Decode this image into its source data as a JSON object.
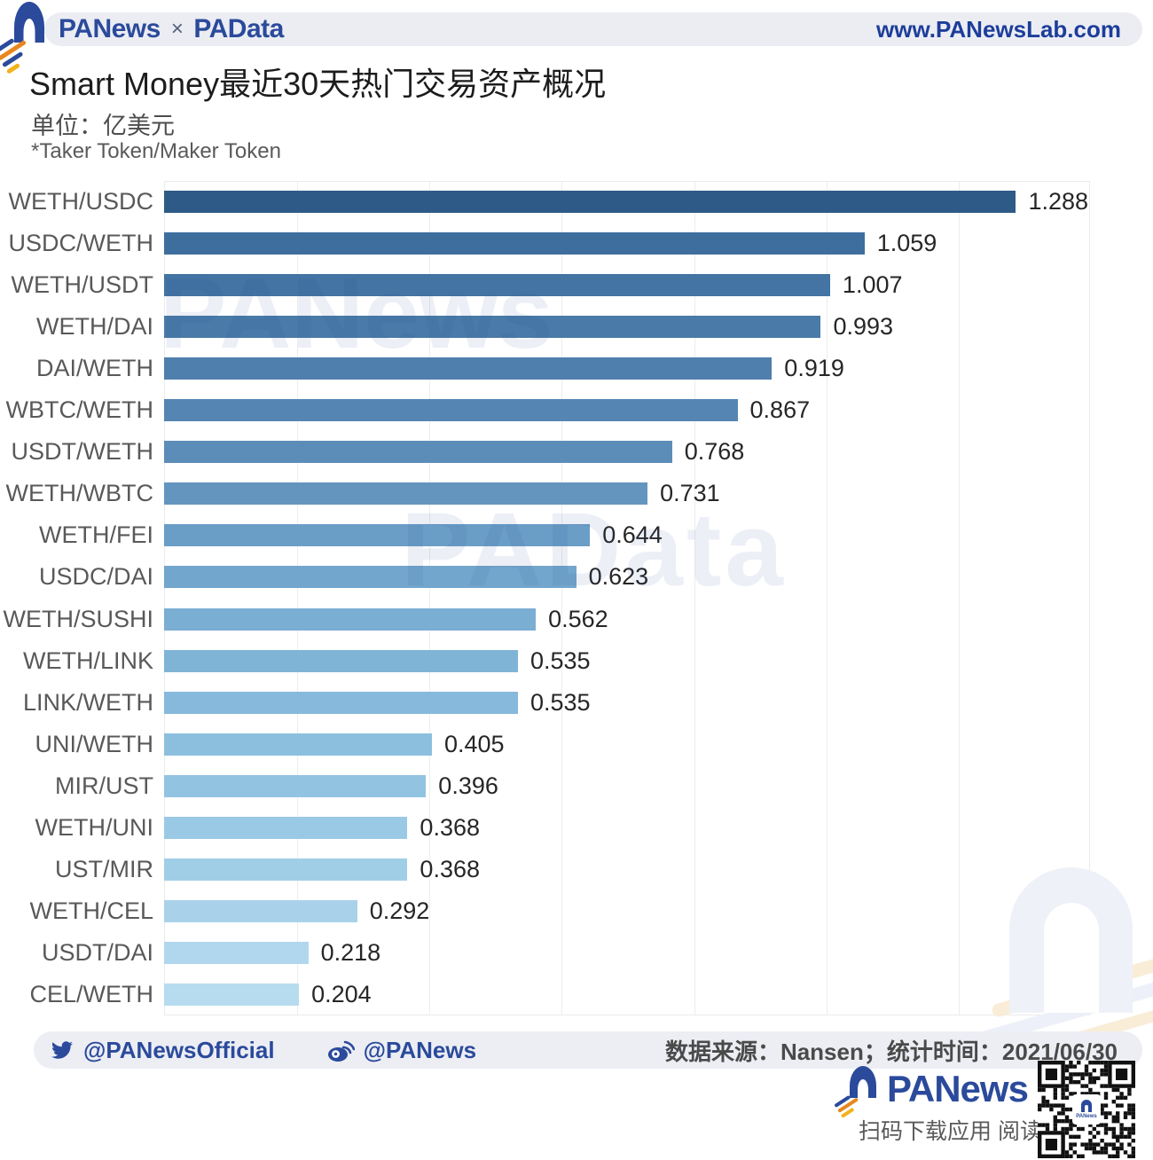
{
  "header": {
    "brand_left": "PANews",
    "brand_x": "×",
    "brand_right": "PAData",
    "site_url": "www.PANewsLab.com"
  },
  "title": "Smart Money最近30天热门交易资产概况",
  "subtitle": "单位：亿美元",
  "note": "*Taker Token/Maker Token",
  "watermarks": {
    "first": "PANews",
    "second": "PAData"
  },
  "chart_data": {
    "type": "bar",
    "orientation": "horizontal",
    "title": "Smart Money最近30天热门交易资产概况",
    "unit": "亿美元",
    "xlabel": "",
    "ylabel": "Taker Token/Maker Token",
    "xlim": [
      0,
      1.4
    ],
    "gridline_step": 0.2,
    "grid": true,
    "categories": [
      "WETH/USDC",
      "USDC/WETH",
      "WETH/USDT",
      "WETH/DAI",
      "DAI/WETH",
      "WBTC/WETH",
      "USDT/WETH",
      "WETH/WBTC",
      "WETH/FEI",
      "USDC/DAI",
      "WETH/SUSHI",
      "WETH/LINK",
      "LINK/WETH",
      "UNI/WETH",
      "MIR/UST",
      "WETH/UNI",
      "UST/MIR",
      "WETH/CEL",
      "USDT/DAI",
      "CEL/WETH"
    ],
    "values": [
      1.288,
      1.059,
      1.007,
      0.993,
      0.919,
      0.867,
      0.768,
      0.731,
      0.644,
      0.623,
      0.562,
      0.535,
      0.535,
      0.405,
      0.396,
      0.368,
      0.368,
      0.292,
      0.218,
      0.204
    ],
    "bar_colors": [
      "#2e5a87",
      "#3d6e9e",
      "#4374a3",
      "#497aa8",
      "#4f7fad",
      "#5585b2",
      "#5c8db9",
      "#6495bf",
      "#6b9ec6",
      "#73a6cc",
      "#7aaed3",
      "#80b4d7",
      "#86b9db",
      "#8cbfde",
      "#92c4e2",
      "#9ac9e5",
      "#a1cee7",
      "#a9d2ea",
      "#b0d7ed",
      "#b8dcef"
    ]
  },
  "footer": {
    "twitter_handle": "@PANewsOfficial",
    "weibo_handle": "@PANews",
    "source_text": "数据来源：Nansen；统计时间：2021/06/30",
    "brand": "PANews",
    "qr_caption": "扫码下载应用  阅读原文"
  },
  "colors": {
    "brand_blue": "#2b4a9b",
    "stripe_orange": "#e8871e",
    "stripe_yellow": "#f3b21d",
    "band_gray": "#ebedf3",
    "label_gray": "#595959",
    "value_dark": "#262626"
  }
}
